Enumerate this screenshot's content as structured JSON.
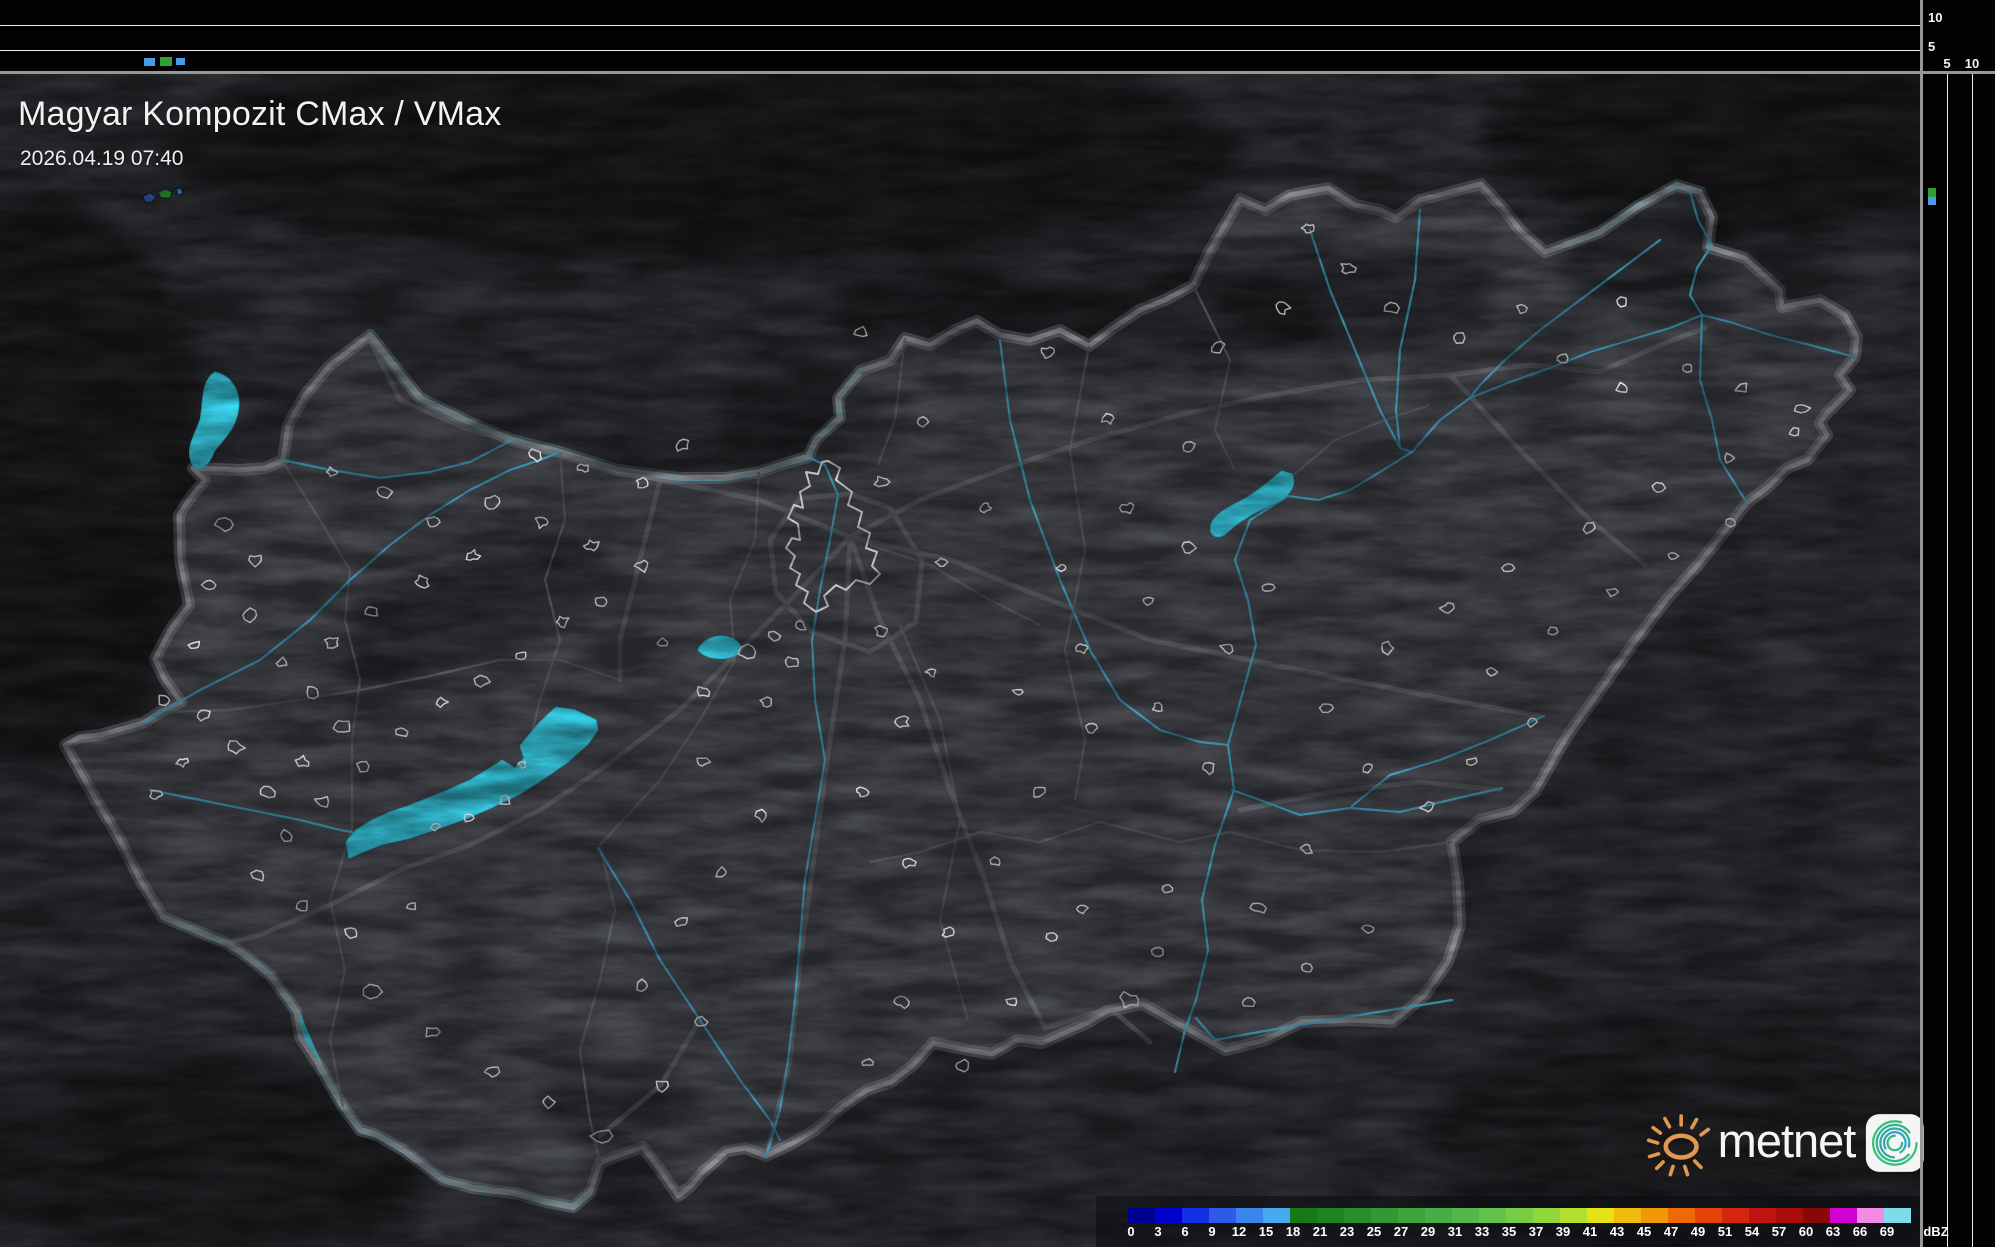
{
  "header": {
    "title": "Magyar Kompozit CMax / VMax",
    "timestamp": "2026.04.19 07:40"
  },
  "profile_top": {
    "axis_labels": [
      "10",
      "5"
    ]
  },
  "profile_right": {
    "axis_labels": [
      "5",
      "10"
    ]
  },
  "colorbar": {
    "unit": "dBZ",
    "ticks": [
      "0",
      "3",
      "6",
      "9",
      "12",
      "15",
      "18",
      "21",
      "23",
      "25",
      "27",
      "29",
      "31",
      "33",
      "35",
      "37",
      "39",
      "41",
      "43",
      "45",
      "47",
      "49",
      "51",
      "54",
      "57",
      "60",
      "63",
      "66",
      "69"
    ],
    "colors": [
      "#00008e",
      "#0000cd",
      "#1430e6",
      "#2c5bea",
      "#3a85ee",
      "#46abee",
      "#167816",
      "#1e831e",
      "#278e27",
      "#319931",
      "#3ba43b",
      "#46ae46",
      "#53b849",
      "#63c24a",
      "#77cc45",
      "#90d63c",
      "#b2e02c",
      "#e6e214",
      "#f0bb0e",
      "#f29706",
      "#ee6a04",
      "#e44206",
      "#d6250e",
      "#c01311",
      "#a80c0c",
      "#8a0707",
      "#d203d2",
      "#f08ce6",
      "#7cdde8"
    ]
  },
  "logo": {
    "text": "metnet"
  },
  "theme": {
    "echo_blue": "#4a9ae8",
    "echo_green": "#2fa133",
    "lake_cyan": "#3bd9f2",
    "river_blue": "#45aacc",
    "border_gray": "#8e9095",
    "road_gray": "#7c7e84",
    "county_gray": "#63656b",
    "settlement_white": "#ececec",
    "logo_orange": "#e0984e",
    "icon_teal": "#35b489"
  }
}
